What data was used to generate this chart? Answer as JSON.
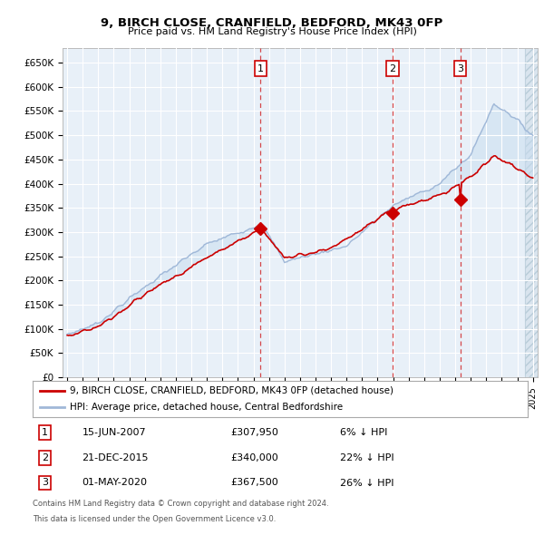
{
  "title1": "9, BIRCH CLOSE, CRANFIELD, BEDFORD, MK43 0FP",
  "title2": "Price paid vs. HM Land Registry's House Price Index (HPI)",
  "ylabel_ticks": [
    "£0",
    "£50K",
    "£100K",
    "£150K",
    "£200K",
    "£250K",
    "£300K",
    "£350K",
    "£400K",
    "£450K",
    "£500K",
    "£550K",
    "£600K",
    "£650K"
  ],
  "ytick_values": [
    0,
    50000,
    100000,
    150000,
    200000,
    250000,
    300000,
    350000,
    400000,
    450000,
    500000,
    550000,
    600000,
    650000
  ],
  "ylim": [
    0,
    680000
  ],
  "xlim_min": 1994.7,
  "xlim_max": 2025.3,
  "purchase_dates_num": [
    2007.456,
    2015.972,
    2020.331
  ],
  "purchase_prices": [
    307950,
    340000,
    367500
  ],
  "purchase_labels": [
    "1",
    "2",
    "3"
  ],
  "legend_line1": "9, BIRCH CLOSE, CRANFIELD, BEDFORD, MK43 0FP (detached house)",
  "legend_line2": "HPI: Average price, detached house, Central Bedfordshire",
  "table_rows": [
    [
      "1",
      "15-JUN-2007",
      "£307,950",
      "6% ↓ HPI"
    ],
    [
      "2",
      "21-DEC-2015",
      "£340,000",
      "22% ↓ HPI"
    ],
    [
      "3",
      "01-MAY-2020",
      "£367,500",
      "26% ↓ HPI"
    ]
  ],
  "footnote1": "Contains HM Land Registry data © Crown copyright and database right 2024.",
  "footnote2": "This data is licensed under the Open Government Licence v3.0.",
  "hpi_color": "#a0b8d8",
  "price_color": "#cc0000",
  "bg_color": "#e8f0f8",
  "grid_color": "#ffffff"
}
